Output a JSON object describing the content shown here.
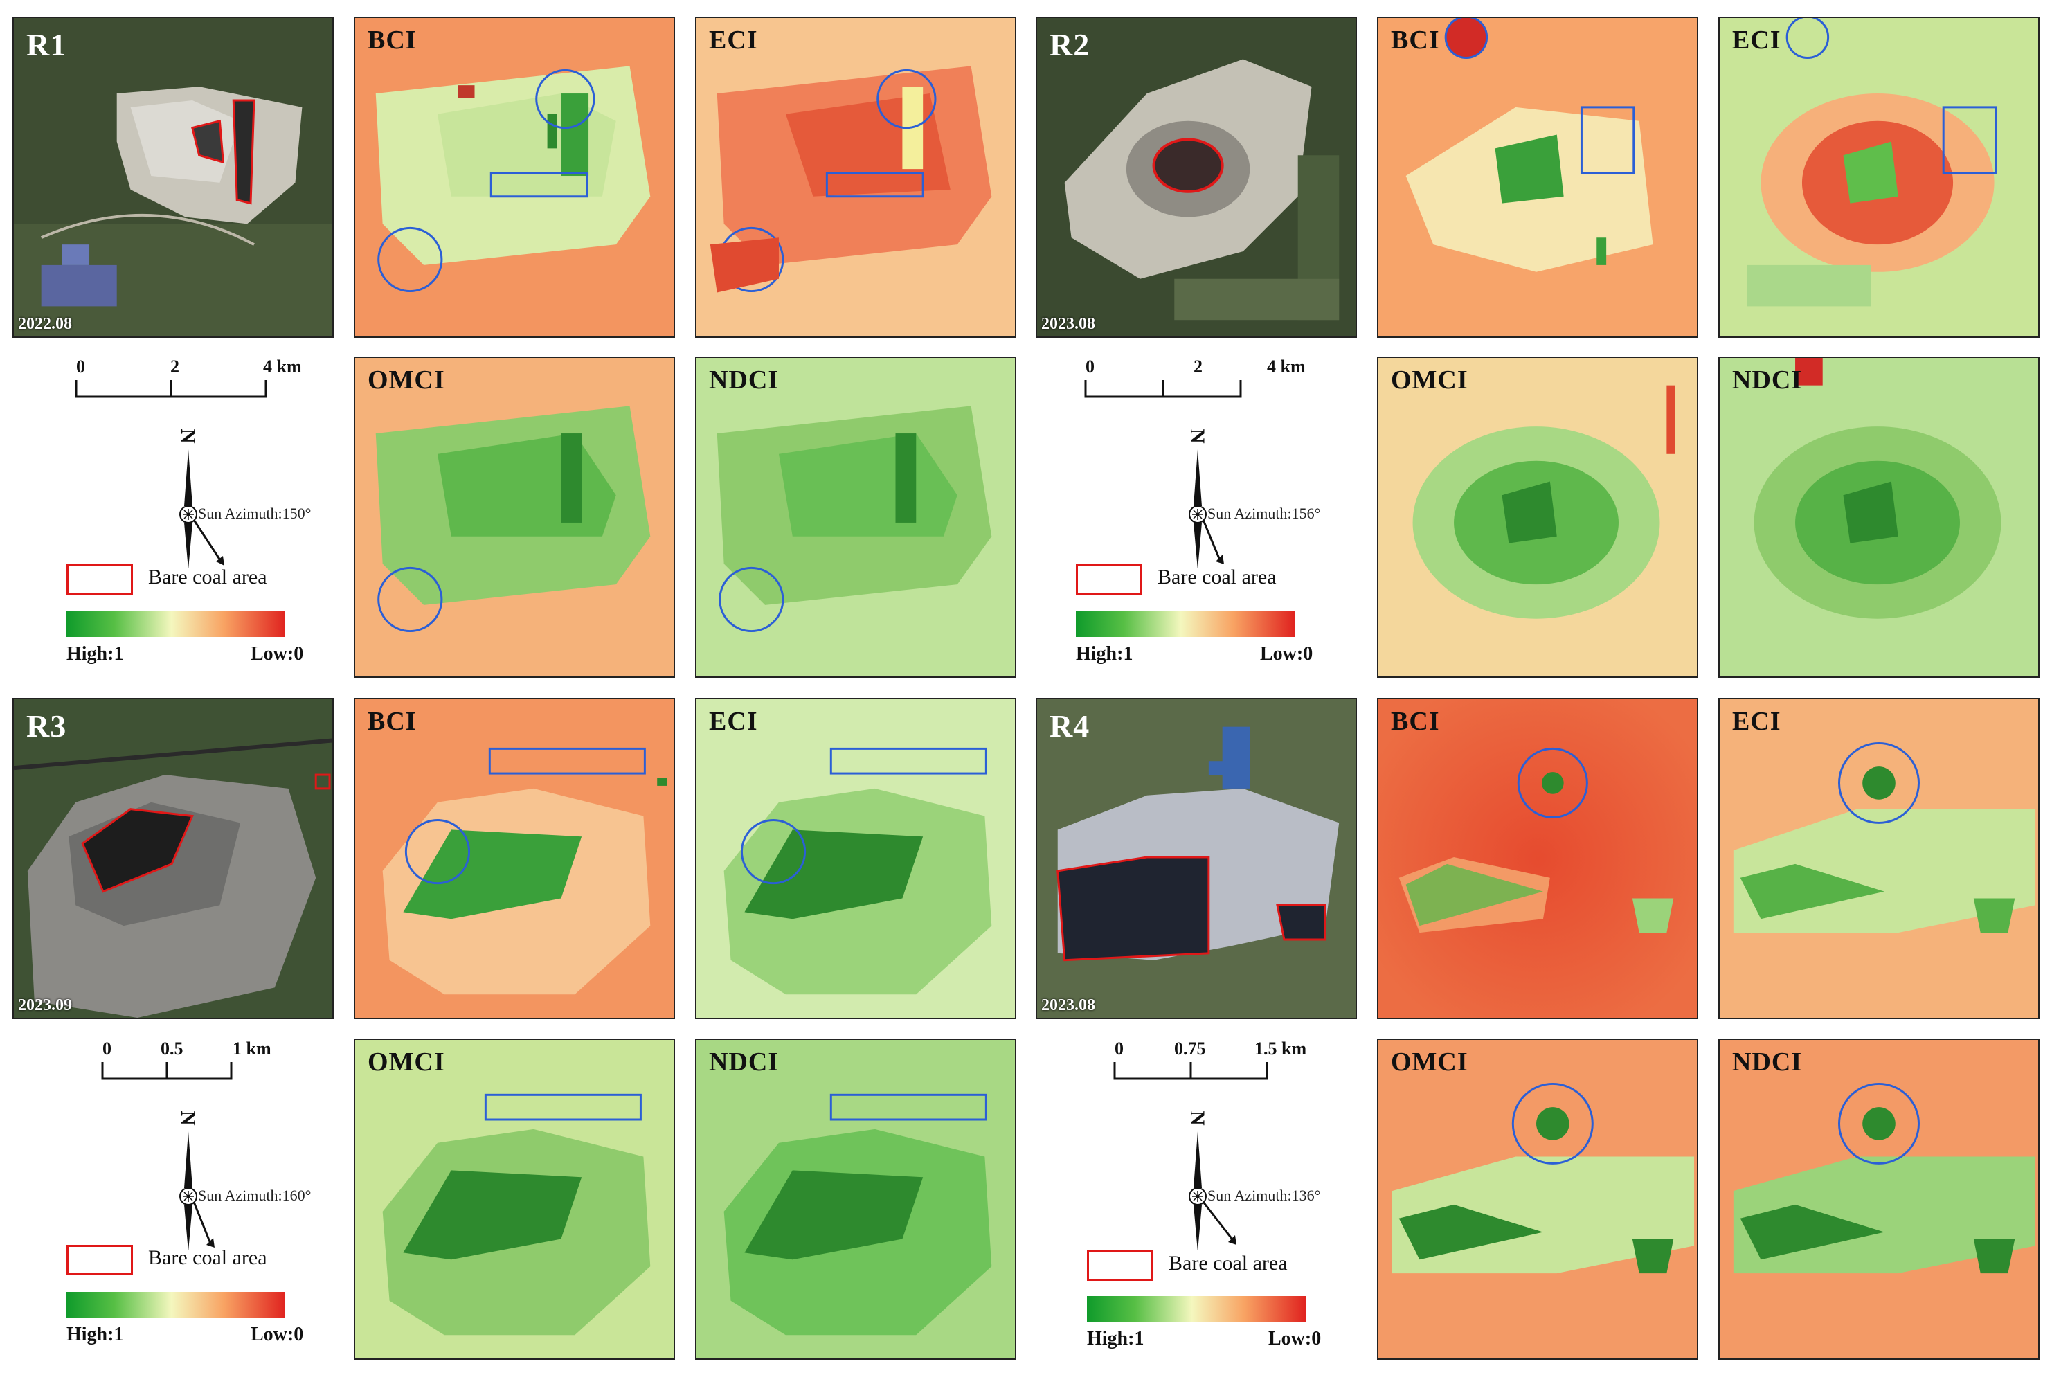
{
  "colors": {
    "high": "#0f9b2b",
    "mid": "#f4f7be",
    "low": "#e0231f",
    "bare_coal_outline": "#e01818",
    "highlight_outline": "#2b5fd6"
  },
  "regions": [
    {
      "id": "R1",
      "date": "2022.08",
      "panels": [
        "BCI",
        "ECI",
        "OMCI",
        "NDCI"
      ],
      "scale": [
        "0",
        "2",
        "4 km"
      ],
      "sun_azimuth": "Sun Azimuth:150°"
    },
    {
      "id": "R2",
      "date": "2023.08",
      "panels": [
        "BCI",
        "ECI",
        "OMCI",
        "NDCI"
      ],
      "scale": [
        "0",
        "2",
        "4 km"
      ],
      "sun_azimuth": "Sun Azimuth:156°"
    },
    {
      "id": "R3",
      "date": "2023.09",
      "panels": [
        "BCI",
        "ECI",
        "OMCI",
        "NDCI"
      ],
      "scale": [
        "0",
        "0.5",
        "1 km"
      ],
      "sun_azimuth": "Sun Azimuth:160°"
    },
    {
      "id": "R4",
      "date": "2023.08",
      "panels": [
        "BCI",
        "ECI",
        "OMCI",
        "NDCI"
      ],
      "scale": [
        "0",
        "0.75",
        "1.5 km"
      ],
      "sun_azimuth": "Sun Azimuth:136°"
    }
  ],
  "legend": {
    "bare_coal_label": "Bare coal area",
    "high_label": "High:1",
    "low_label": "Low:0",
    "north_label": "N"
  }
}
